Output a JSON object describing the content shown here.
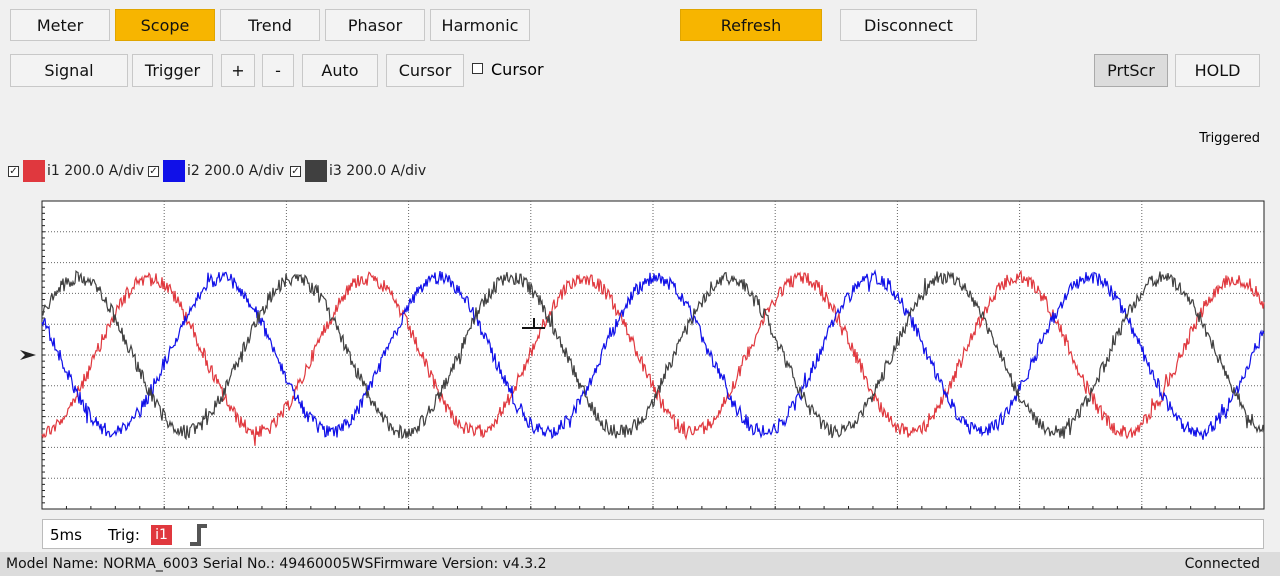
{
  "tabs": [
    "Meter",
    "Scope",
    "Trend",
    "Phasor",
    "Harmonic"
  ],
  "active_tab": "Scope",
  "actions": [
    "Refresh",
    "Disconnect"
  ],
  "toolbar": [
    "Signal",
    "Trigger",
    "+",
    "-",
    "Auto",
    "Cursor"
  ],
  "cursor_checkbox": "Cursor",
  "right_buttons": [
    "PrtScr",
    "HOLD"
  ],
  "status_indicator": "Triggered",
  "channels": [
    {
      "label": "i1 200.0 A/div",
      "color": "#e0383e"
    },
    {
      "label": "i2 200.0 A/div",
      "color": "#1010e8"
    },
    {
      "label": "i3 200.0 A/div",
      "color": "#404040"
    }
  ],
  "timebase": "5ms",
  "trigger": {
    "label": "Trig:",
    "channel": "i1"
  },
  "status_bar": {
    "info": "Model Name:  NORMA_6003 Serial No.:  49460005WSFirmware Version:  v4.3.2",
    "connection": "Connected"
  }
}
